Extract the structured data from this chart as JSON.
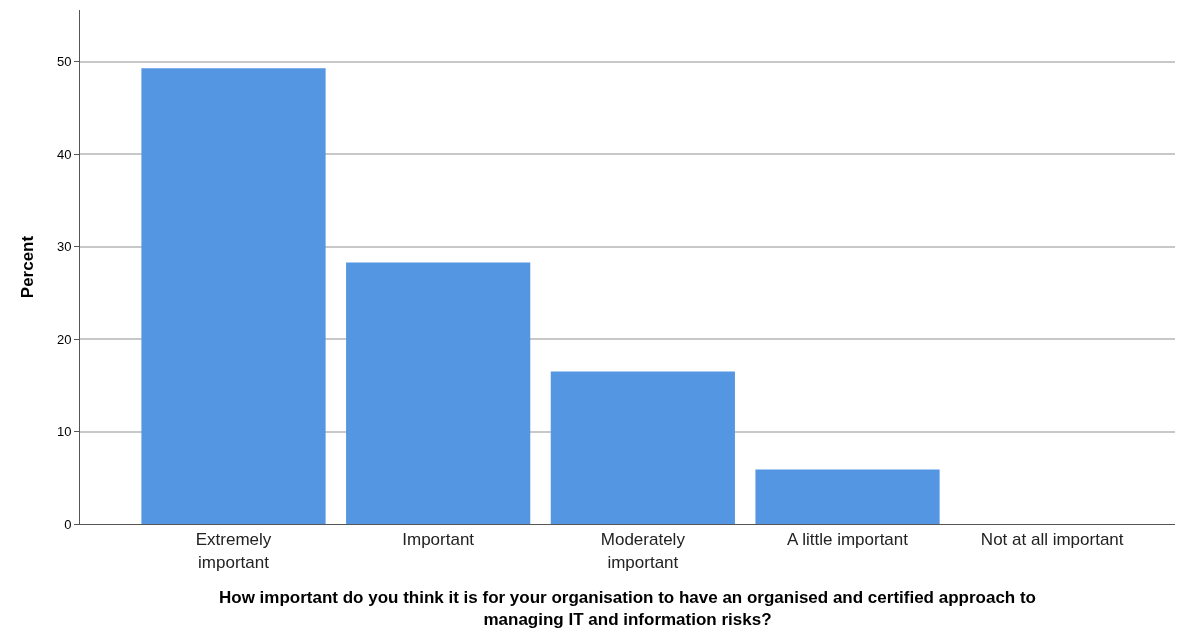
{
  "chart_data": {
    "type": "bar",
    "categories": [
      "Extremely\nimportant",
      "Important",
      "Moderately\nimportant",
      "A little important",
      "Not at all important"
    ],
    "values": [
      49.3,
      28.3,
      16.5,
      5.9,
      0
    ],
    "color": "#5596e3",
    "xlabel": "How important do you think it is for your organisation to have an organised and certified approach to\nmanaging IT and information risks?",
    "ylabel": "Percent",
    "ylim": [
      0,
      55.6
    ],
    "yticks": [
      0,
      10,
      20,
      30,
      40,
      50
    ],
    "grid": "y"
  }
}
